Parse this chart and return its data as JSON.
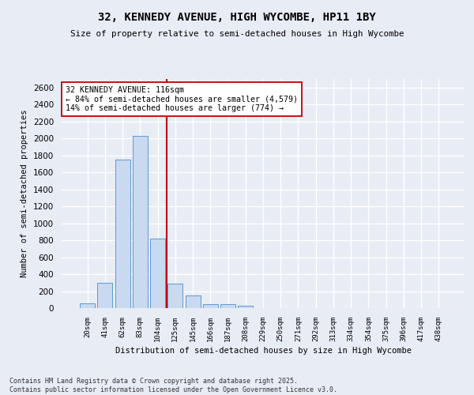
{
  "title_line1": "32, KENNEDY AVENUE, HIGH WYCOMBE, HP11 1BY",
  "title_line2": "Size of property relative to semi-detached houses in High Wycombe",
  "xlabel": "Distribution of semi-detached houses by size in High Wycombe",
  "ylabel": "Number of semi-detached properties",
  "bar_color": "#c9d9f0",
  "bar_edge_color": "#5b9bd5",
  "categories": [
    "20sqm",
    "41sqm",
    "62sqm",
    "83sqm",
    "104sqm",
    "125sqm",
    "145sqm",
    "166sqm",
    "187sqm",
    "208sqm",
    "229sqm",
    "250sqm",
    "271sqm",
    "292sqm",
    "313sqm",
    "334sqm",
    "354sqm",
    "375sqm",
    "396sqm",
    "417sqm",
    "438sqm"
  ],
  "values": [
    60,
    295,
    1755,
    2030,
    820,
    285,
    145,
    50,
    45,
    32,
    0,
    0,
    0,
    0,
    0,
    0,
    0,
    0,
    0,
    0,
    0
  ],
  "ylim": [
    0,
    2700
  ],
  "yticks": [
    0,
    200,
    400,
    600,
    800,
    1000,
    1200,
    1400,
    1600,
    1800,
    2000,
    2200,
    2400,
    2600
  ],
  "vline_x": 4.5,
  "vline_color": "#c00000",
  "annotation_text": "32 KENNEDY AVENUE: 116sqm\n← 84% of semi-detached houses are smaller (4,579)\n14% of semi-detached houses are larger (774) →",
  "annotation_box_color": "#ffffff",
  "annotation_edge_color": "#c00000",
  "footnote": "Contains HM Land Registry data © Crown copyright and database right 2025.\nContains public sector information licensed under the Open Government Licence v3.0.",
  "bg_color": "#e8ecf5",
  "plot_bg_color": "#e8ecf5",
  "grid_color": "#ffffff"
}
